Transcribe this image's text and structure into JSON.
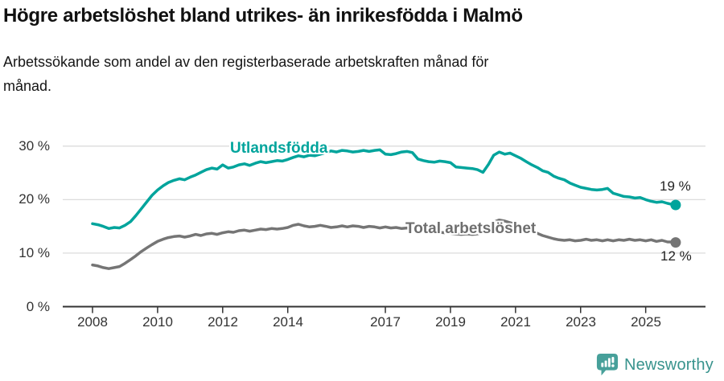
{
  "footer": {
    "brand": "Newsworthy"
  },
  "colors": {
    "grid": "#dcdcdc",
    "axis": "#333333",
    "tick_text": "#333333",
    "accent_teal": "#00a49c",
    "series_gray": "#757575",
    "brand_teal": "#47a09a"
  },
  "chart_data": {
    "type": "line",
    "title": "Högre arbetslöshet bland utrikes- än inrikesfödda i Malmö",
    "subtitle_lines": [
      "Arbetssökande som andel av den registerbaserade arbetskraften månad för",
      "månad."
    ],
    "xlabel": "",
    "ylabel": "",
    "grid": "horizontal",
    "legend_position": "inline-labels",
    "x_axis": {
      "range_years": [
        2008,
        2026
      ],
      "ticks": [
        {
          "year": 2008,
          "label": "2008"
        },
        {
          "year": 2010,
          "label": "2010"
        },
        {
          "year": 2012,
          "label": "2012"
        },
        {
          "year": 2014,
          "label": "2014"
        },
        {
          "year": 2017,
          "label": "2017"
        },
        {
          "year": 2019,
          "label": "2019"
        },
        {
          "year": 2021,
          "label": "2021"
        },
        {
          "year": 2023,
          "label": "2023"
        },
        {
          "year": 2025,
          "label": "2025"
        }
      ]
    },
    "y_axis": {
      "range": [
        0,
        31
      ],
      "ticks": [
        {
          "value": 30,
          "label": "30 %"
        },
        {
          "value": 20,
          "label": "20 %"
        },
        {
          "value": 10,
          "label": "10 %"
        },
        {
          "value": 0,
          "label": "0 %"
        }
      ]
    },
    "series": [
      {
        "name": "Utlandsfödda",
        "color": "#00a49c",
        "end_label": "19 %",
        "end_value": 19,
        "points": [
          [
            2008.0,
            15.5
          ],
          [
            2008.17,
            15.3
          ],
          [
            2008.33,
            15.0
          ],
          [
            2008.5,
            14.6
          ],
          [
            2008.67,
            14.8
          ],
          [
            2008.83,
            14.7
          ],
          [
            2009.0,
            15.2
          ],
          [
            2009.17,
            15.9
          ],
          [
            2009.33,
            17.0
          ],
          [
            2009.5,
            18.3
          ],
          [
            2009.67,
            19.6
          ],
          [
            2009.83,
            20.8
          ],
          [
            2010.0,
            21.8
          ],
          [
            2010.17,
            22.6
          ],
          [
            2010.33,
            23.2
          ],
          [
            2010.5,
            23.6
          ],
          [
            2010.67,
            23.9
          ],
          [
            2010.83,
            23.7
          ],
          [
            2011.0,
            24.2
          ],
          [
            2011.17,
            24.6
          ],
          [
            2011.33,
            25.1
          ],
          [
            2011.5,
            25.6
          ],
          [
            2011.67,
            25.9
          ],
          [
            2011.83,
            25.7
          ],
          [
            2012.0,
            26.5
          ],
          [
            2012.17,
            25.9
          ],
          [
            2012.33,
            26.1
          ],
          [
            2012.5,
            26.5
          ],
          [
            2012.67,
            26.7
          ],
          [
            2012.83,
            26.4
          ],
          [
            2013.0,
            26.8
          ],
          [
            2013.17,
            27.1
          ],
          [
            2013.33,
            26.9
          ],
          [
            2013.5,
            27.1
          ],
          [
            2013.67,
            27.3
          ],
          [
            2013.83,
            27.2
          ],
          [
            2014.0,
            27.5
          ],
          [
            2014.17,
            27.9
          ],
          [
            2014.33,
            28.2
          ],
          [
            2014.5,
            28.0
          ],
          [
            2014.67,
            28.3
          ],
          [
            2014.83,
            28.2
          ],
          [
            2015.0,
            28.5
          ],
          [
            2015.17,
            28.8
          ],
          [
            2015.33,
            29.1
          ],
          [
            2015.5,
            28.9
          ],
          [
            2015.67,
            29.2
          ],
          [
            2015.83,
            29.1
          ],
          [
            2016.0,
            28.9
          ],
          [
            2016.17,
            29.0
          ],
          [
            2016.33,
            29.2
          ],
          [
            2016.5,
            29.0
          ],
          [
            2016.67,
            29.2
          ],
          [
            2016.83,
            29.3
          ],
          [
            2017.0,
            28.5
          ],
          [
            2017.17,
            28.4
          ],
          [
            2017.33,
            28.6
          ],
          [
            2017.5,
            28.9
          ],
          [
            2017.67,
            29.0
          ],
          [
            2017.83,
            28.8
          ],
          [
            2018.0,
            27.6
          ],
          [
            2018.17,
            27.3
          ],
          [
            2018.33,
            27.1
          ],
          [
            2018.5,
            27.0
          ],
          [
            2018.67,
            27.2
          ],
          [
            2018.83,
            27.1
          ],
          [
            2019.0,
            26.9
          ],
          [
            2019.17,
            26.1
          ],
          [
            2019.33,
            26.0
          ],
          [
            2019.5,
            25.9
          ],
          [
            2019.67,
            25.8
          ],
          [
            2019.83,
            25.6
          ],
          [
            2020.0,
            25.1
          ],
          [
            2020.17,
            26.6
          ],
          [
            2020.33,
            28.3
          ],
          [
            2020.5,
            28.9
          ],
          [
            2020.67,
            28.5
          ],
          [
            2020.83,
            28.7
          ],
          [
            2021.0,
            28.2
          ],
          [
            2021.17,
            27.7
          ],
          [
            2021.33,
            27.1
          ],
          [
            2021.5,
            26.5
          ],
          [
            2021.67,
            26.0
          ],
          [
            2021.83,
            25.4
          ],
          [
            2022.0,
            25.1
          ],
          [
            2022.17,
            24.4
          ],
          [
            2022.33,
            24.0
          ],
          [
            2022.5,
            23.7
          ],
          [
            2022.67,
            23.1
          ],
          [
            2022.83,
            22.7
          ],
          [
            2023.0,
            22.3
          ],
          [
            2023.17,
            22.1
          ],
          [
            2023.33,
            21.9
          ],
          [
            2023.5,
            21.8
          ],
          [
            2023.67,
            21.9
          ],
          [
            2023.83,
            22.1
          ],
          [
            2024.0,
            21.2
          ],
          [
            2024.17,
            20.9
          ],
          [
            2024.33,
            20.6
          ],
          [
            2024.5,
            20.5
          ],
          [
            2024.67,
            20.3
          ],
          [
            2024.83,
            20.4
          ],
          [
            2025.0,
            20.0
          ],
          [
            2025.17,
            19.7
          ],
          [
            2025.33,
            19.5
          ],
          [
            2025.5,
            19.6
          ],
          [
            2025.67,
            19.3
          ],
          [
            2025.83,
            19.1
          ],
          [
            2025.92,
            19.0
          ]
        ]
      },
      {
        "name": "Total arbetslöshet",
        "color": "#757575",
        "end_label": "12 %",
        "end_value": 12,
        "points": [
          [
            2008.0,
            7.8
          ],
          [
            2008.17,
            7.6
          ],
          [
            2008.33,
            7.3
          ],
          [
            2008.5,
            7.1
          ],
          [
            2008.67,
            7.3
          ],
          [
            2008.83,
            7.5
          ],
          [
            2009.0,
            8.1
          ],
          [
            2009.17,
            8.8
          ],
          [
            2009.33,
            9.5
          ],
          [
            2009.5,
            10.3
          ],
          [
            2009.67,
            11.0
          ],
          [
            2009.83,
            11.6
          ],
          [
            2010.0,
            12.2
          ],
          [
            2010.17,
            12.6
          ],
          [
            2010.33,
            12.9
          ],
          [
            2010.5,
            13.1
          ],
          [
            2010.67,
            13.2
          ],
          [
            2010.83,
            13.0
          ],
          [
            2011.0,
            13.2
          ],
          [
            2011.17,
            13.5
          ],
          [
            2011.33,
            13.3
          ],
          [
            2011.5,
            13.6
          ],
          [
            2011.67,
            13.7
          ],
          [
            2011.83,
            13.5
          ],
          [
            2012.0,
            13.8
          ],
          [
            2012.17,
            14.0
          ],
          [
            2012.33,
            13.9
          ],
          [
            2012.5,
            14.2
          ],
          [
            2012.67,
            14.3
          ],
          [
            2012.83,
            14.1
          ],
          [
            2013.0,
            14.3
          ],
          [
            2013.17,
            14.5
          ],
          [
            2013.33,
            14.4
          ],
          [
            2013.5,
            14.6
          ],
          [
            2013.67,
            14.5
          ],
          [
            2013.83,
            14.6
          ],
          [
            2014.0,
            14.8
          ],
          [
            2014.17,
            15.2
          ],
          [
            2014.33,
            15.4
          ],
          [
            2014.5,
            15.1
          ],
          [
            2014.67,
            14.9
          ],
          [
            2014.83,
            15.0
          ],
          [
            2015.0,
            15.2
          ],
          [
            2015.17,
            15.0
          ],
          [
            2015.33,
            14.8
          ],
          [
            2015.5,
            14.9
          ],
          [
            2015.67,
            15.1
          ],
          [
            2015.83,
            14.9
          ],
          [
            2016.0,
            15.1
          ],
          [
            2016.17,
            15.0
          ],
          [
            2016.33,
            14.8
          ],
          [
            2016.5,
            15.0
          ],
          [
            2016.67,
            14.9
          ],
          [
            2016.83,
            14.7
          ],
          [
            2017.0,
            14.9
          ],
          [
            2017.17,
            14.7
          ],
          [
            2017.33,
            14.8
          ],
          [
            2017.5,
            14.6
          ],
          [
            2017.67,
            14.7
          ],
          [
            2017.83,
            14.5
          ],
          [
            2018.0,
            14.4
          ],
          [
            2018.17,
            14.3
          ],
          [
            2018.33,
            14.1
          ],
          [
            2018.5,
            14.0
          ],
          [
            2018.67,
            13.9
          ],
          [
            2018.83,
            13.8
          ],
          [
            2019.0,
            13.7
          ],
          [
            2019.17,
            13.6
          ],
          [
            2019.33,
            13.5
          ],
          [
            2019.5,
            13.6
          ],
          [
            2019.67,
            13.5
          ],
          [
            2019.83,
            13.6
          ],
          [
            2020.0,
            13.9
          ],
          [
            2020.17,
            14.9
          ],
          [
            2020.33,
            15.8
          ],
          [
            2020.5,
            16.2
          ],
          [
            2020.67,
            16.0
          ],
          [
            2020.83,
            15.7
          ],
          [
            2021.0,
            15.4
          ],
          [
            2021.17,
            15.0
          ],
          [
            2021.33,
            14.5
          ],
          [
            2021.5,
            14.1
          ],
          [
            2021.67,
            13.7
          ],
          [
            2021.83,
            13.3
          ],
          [
            2022.0,
            13.0
          ],
          [
            2022.17,
            12.7
          ],
          [
            2022.33,
            12.5
          ],
          [
            2022.5,
            12.4
          ],
          [
            2022.67,
            12.5
          ],
          [
            2022.83,
            12.3
          ],
          [
            2023.0,
            12.4
          ],
          [
            2023.17,
            12.6
          ],
          [
            2023.33,
            12.4
          ],
          [
            2023.5,
            12.5
          ],
          [
            2023.67,
            12.3
          ],
          [
            2023.83,
            12.5
          ],
          [
            2024.0,
            12.3
          ],
          [
            2024.17,
            12.5
          ],
          [
            2024.33,
            12.4
          ],
          [
            2024.5,
            12.6
          ],
          [
            2024.67,
            12.4
          ],
          [
            2024.83,
            12.5
          ],
          [
            2025.0,
            12.3
          ],
          [
            2025.17,
            12.5
          ],
          [
            2025.33,
            12.2
          ],
          [
            2025.5,
            12.4
          ],
          [
            2025.67,
            12.1
          ],
          [
            2025.83,
            12.1
          ],
          [
            2025.92,
            12.0
          ]
        ]
      }
    ]
  }
}
